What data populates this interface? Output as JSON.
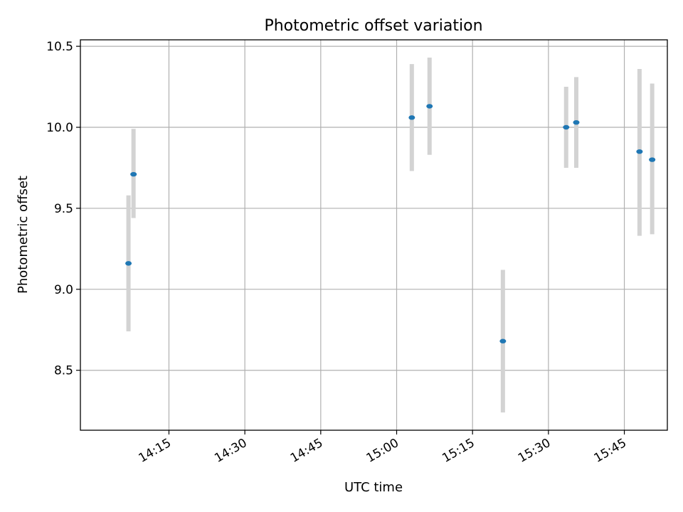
{
  "chart_data": {
    "type": "scatter",
    "title": "Photometric offset variation",
    "xlabel": "UTC time",
    "ylabel": "Photometric offset",
    "date": "2000-01-01",
    "xlim": [
      "2000-01-01T13:57:30",
      "2000-01-01T15:53:30"
    ],
    "ylim": [
      8.13,
      10.54
    ],
    "x_ticks": [
      {
        "value": "2000-01-01T14:15:00",
        "label": "14:15"
      },
      {
        "value": "2000-01-01T14:30:00",
        "label": "14:30"
      },
      {
        "value": "2000-01-01T14:45:00",
        "label": "14:45"
      },
      {
        "value": "2000-01-01T15:00:00",
        "label": "15:00"
      },
      {
        "value": "2000-01-01T15:15:00",
        "label": "15:15"
      },
      {
        "value": "2000-01-01T15:30:00",
        "label": "15:30"
      },
      {
        "value": "2000-01-01T15:45:00",
        "label": "15:45"
      }
    ],
    "y_ticks": [
      {
        "value": 8.5,
        "label": "8.5"
      },
      {
        "value": 9.0,
        "label": "9.0"
      },
      {
        "value": 9.5,
        "label": "9.5"
      },
      {
        "value": 10.0,
        "label": "10.0"
      },
      {
        "value": 10.5,
        "label": "10.5"
      }
    ],
    "grid": true,
    "points": [
      {
        "x": "2000-01-01T14:07:00",
        "y": 9.16,
        "err_low": 8.74,
        "err_high": 9.58
      },
      {
        "x": "2000-01-01T14:08:00",
        "y": 9.71,
        "err_low": 9.44,
        "err_high": 9.99
      },
      {
        "x": "2000-01-01T15:03:00",
        "y": 10.06,
        "err_low": 9.73,
        "err_high": 10.39
      },
      {
        "x": "2000-01-01T15:06:30",
        "y": 10.13,
        "err_low": 9.83,
        "err_high": 10.43
      },
      {
        "x": "2000-01-01T15:21:00",
        "y": 8.68,
        "err_low": 8.24,
        "err_high": 9.12
      },
      {
        "x": "2000-01-01T15:33:30",
        "y": 10.0,
        "err_low": 9.75,
        "err_high": 10.25
      },
      {
        "x": "2000-01-01T15:35:30",
        "y": 10.03,
        "err_low": 9.75,
        "err_high": 10.31
      },
      {
        "x": "2000-01-01T15:48:00",
        "y": 9.85,
        "err_low": 9.33,
        "err_high": 10.36
      },
      {
        "x": "2000-01-01T15:50:30",
        "y": 9.8,
        "err_low": 9.34,
        "err_high": 10.27
      }
    ],
    "colors": {
      "point": "#1f77b4",
      "errorbar": "#d3d3d3",
      "grid": "#b0b0b0"
    }
  }
}
